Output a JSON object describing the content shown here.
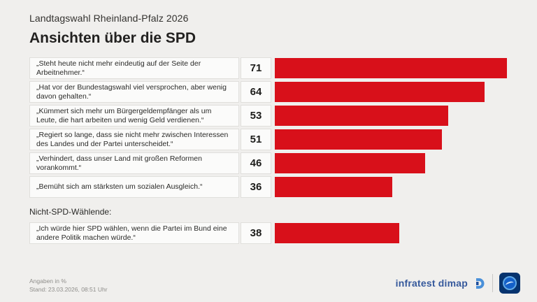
{
  "header": {
    "kicker": "Landtagswahl Rheinland-Pfalz 2026",
    "title": "Ansichten über die SPD"
  },
  "chart_data": {
    "type": "bar",
    "orientation": "horizontal",
    "title": "Ansichten über die SPD",
    "subtitle": "Landtagswahl Rheinland-Pfalz 2026",
    "unit": "%",
    "xlim": [
      0,
      75
    ],
    "grid": false,
    "bar_color": "#d8101a",
    "categories": [
      "„Steht heute nicht mehr eindeutig auf der Seite der Arbeitnehmer.“",
      "„Hat vor der Bundestagswahl viel versprochen, aber wenig davon gehalten.“",
      "„Kümmert sich mehr um Bürgergeldempfänger als um Leute, die hart arbeiten und wenig Geld verdienen.“",
      "„Regiert so lange, dass sie nicht mehr zwischen Interessen des Landes und der Partei unterscheidet.“",
      "„Verhindert, dass unser Land mit großen Reformen vorankommt.“",
      "„Bemüht sich am stärksten um sozialen Ausgleich.“",
      "„Ich würde hier SPD wählen, wenn die Partei im Bund eine andere Politik machen würde.“"
    ],
    "values": [
      71,
      64,
      53,
      51,
      46,
      36,
      38
    ],
    "section_break": {
      "before_index": 6,
      "label": "Nicht-SPD-Wählende:"
    }
  },
  "footer": {
    "note": "Angaben in %",
    "stand": "Stand: 23.03.2026, 08:51 Uhr",
    "source": "infratest dimap"
  }
}
